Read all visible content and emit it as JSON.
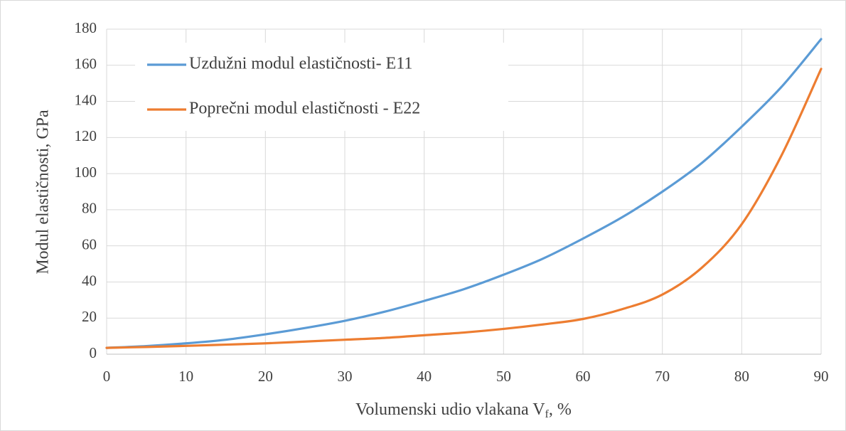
{
  "chart_data": {
    "type": "line",
    "x": [
      0,
      5,
      10,
      15,
      20,
      25,
      30,
      35,
      40,
      45,
      50,
      55,
      60,
      65,
      70,
      75,
      80,
      85,
      90
    ],
    "series": [
      {
        "name": "Uzdužni modul elastičnosti- E11",
        "color": "#5b9bd5",
        "values": [
          3.5,
          4.5,
          6,
          8,
          11,
          14.5,
          18.5,
          23.5,
          29.5,
          36,
          44,
          53,
          64,
          76,
          90,
          106,
          126,
          148,
          174.5
        ]
      },
      {
        "name": "Poprečni modul elastičnosti - E22",
        "color": "#ed7d31",
        "values": [
          3.5,
          4,
          4.6,
          5.3,
          6,
          7,
          8,
          9,
          10.5,
          12,
          14,
          16.5,
          19.5,
          25,
          33,
          48,
          72,
          110,
          158
        ]
      }
    ],
    "xlim": [
      0,
      90
    ],
    "xticks": [
      0,
      10,
      20,
      30,
      40,
      50,
      60,
      70,
      80,
      90
    ],
    "ylim": [
      0,
      180
    ],
    "yticks": [
      0,
      20,
      40,
      60,
      80,
      100,
      120,
      140,
      160,
      180
    ],
    "y_label": "Modul elastičnosti, GPa",
    "x_label": {
      "text": "Volumenski udio vlakana V",
      "subscript": "f",
      "suffix": ", %"
    },
    "grid": true,
    "legend": "upper left"
  }
}
